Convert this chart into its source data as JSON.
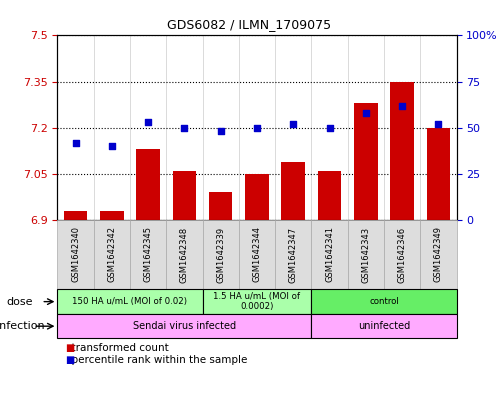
{
  "title": "GDS6082 / ILMN_1709075",
  "samples": [
    "GSM1642340",
    "GSM1642342",
    "GSM1642345",
    "GSM1642348",
    "GSM1642339",
    "GSM1642344",
    "GSM1642347",
    "GSM1642341",
    "GSM1642343",
    "GSM1642346",
    "GSM1642349"
  ],
  "transformed_count": [
    6.93,
    6.93,
    7.13,
    7.06,
    6.99,
    7.05,
    7.09,
    7.06,
    7.28,
    7.35,
    7.2
  ],
  "percentile_rank": [
    42,
    40,
    53,
    50,
    48,
    50,
    52,
    50,
    58,
    62,
    52
  ],
  "ylim_left": [
    6.9,
    7.5
  ],
  "ylim_right": [
    0,
    100
  ],
  "yticks_left": [
    6.9,
    7.05,
    7.2,
    7.35,
    7.5
  ],
  "yticks_right": [
    0,
    25,
    50,
    75,
    100
  ],
  "ytick_labels_left": [
    "6.9",
    "7.05",
    "7.2",
    "7.35",
    "7.5"
  ],
  "ytick_labels_right": [
    "0",
    "25",
    "50",
    "75",
    "100%"
  ],
  "bar_color": "#cc0000",
  "dot_color": "#0000cc",
  "background_color": "#ffffff",
  "dose_groups": [
    {
      "label": "150 HA u/mL (MOI of 0.02)",
      "start": 0,
      "end": 3,
      "color": "#aaffaa"
    },
    {
      "label": "1.5 HA u/mL (MOI of\n0.0002)",
      "start": 4,
      "end": 6,
      "color": "#aaffaa"
    },
    {
      "label": "control",
      "start": 7,
      "end": 10,
      "color": "#66ee66"
    }
  ],
  "infection_groups": [
    {
      "label": "Sendai virus infected",
      "start": 0,
      "end": 6,
      "color": "#ffaaff"
    },
    {
      "label": "uninfected",
      "start": 7,
      "end": 10,
      "color": "#ffaaff"
    }
  ]
}
